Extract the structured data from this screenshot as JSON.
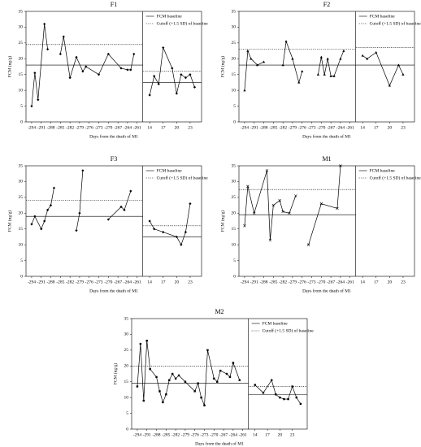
{
  "chart_data": [
    {
      "type": "line",
      "title": "F1",
      "ylabel": "FCM (ng/g)",
      "xlabel": "Days from the death of M1",
      "marker": "diamond",
      "color": "#000000",
      "ylim": [
        0,
        35
      ],
      "yticks": [
        0,
        5,
        10,
        15,
        20,
        25,
        30,
        35
      ],
      "legend": [
        "FCM baseline",
        "Cutoff (+1.5 SD) of baseline"
      ],
      "panels": [
        {
          "xlim": [
            -295,
            -260
          ],
          "xticks": [
            -294,
            -291,
            -288,
            -285,
            -282,
            -279,
            -276,
            -273,
            -270,
            -267,
            -264,
            -261
          ],
          "x": [
            -294,
            -293,
            -292,
            -290,
            -289,
            -288,
            -285,
            -284,
            -282,
            -280,
            -278,
            -277,
            -273,
            -270,
            -266,
            -264,
            -263,
            -262
          ],
          "values": [
            5,
            15.5,
            7,
            31,
            23,
            null,
            21.5,
            27,
            14,
            20.5,
            16,
            17.5,
            15,
            21.5,
            17,
            16.5,
            16.5,
            21.5
          ],
          "baseline": 18,
          "cutoff": 24.5
        },
        {
          "xlim": [
            13,
            25
          ],
          "xticks": [
            14,
            17,
            20,
            23
          ],
          "x": [
            14,
            15,
            16,
            17,
            19,
            20,
            21,
            22,
            23,
            24
          ],
          "values": [
            8.5,
            14.5,
            12,
            23.5,
            17,
            9,
            15,
            14,
            15,
            11
          ],
          "baseline": 12.5,
          "cutoff": 16
        }
      ]
    },
    {
      "type": "line",
      "title": "F2",
      "ylabel": "FCM (ng/g)",
      "xlabel": "Days from the death of M1",
      "marker": "triangle",
      "color": "#000000",
      "ylim": [
        0,
        35
      ],
      "yticks": [
        0,
        5,
        10,
        15,
        20,
        25,
        30,
        35
      ],
      "legend": [
        "FCM baseline",
        "Cutoff (+1.5 SD) of baseline"
      ],
      "panels": [
        {
          "xlim": [
            -295,
            -260
          ],
          "xticks": [
            -294,
            -291,
            -288,
            -285,
            -282,
            -279,
            -276,
            -273,
            -270,
            -267,
            -264,
            -261
          ],
          "x": [
            -294,
            -293,
            -292,
            -290,
            -288,
            -285,
            -282,
            -281,
            -279,
            -277,
            -276,
            -273,
            -271,
            -270,
            -269,
            -268,
            -267,
            -266,
            -264,
            -263
          ],
          "values": [
            10,
            22.5,
            20,
            18,
            19,
            null,
            18,
            25.5,
            20,
            12.5,
            16,
            null,
            15,
            20.5,
            15,
            20,
            14.5,
            14.5,
            20,
            22.5
          ],
          "baseline": 18,
          "cutoff": 23
        },
        {
          "xlim": [
            13,
            25
          ],
          "xticks": [
            14,
            17,
            20,
            23
          ],
          "x": [
            14,
            15,
            17,
            20,
            22,
            23
          ],
          "values": [
            21,
            20,
            22,
            11.5,
            18,
            15
          ],
          "baseline": 18,
          "cutoff": 23.5
        }
      ]
    },
    {
      "type": "line",
      "title": "F3",
      "ylabel": "FCM (ng/g)",
      "xlabel": "Days from the death of M1",
      "marker": "diamond",
      "color": "#000000",
      "ylim": [
        0,
        35
      ],
      "yticks": [
        0,
        5,
        10,
        15,
        20,
        25,
        30,
        35
      ],
      "legend": [
        "FCM baseline",
        "Cutoff (+1.5 SD) of baseline"
      ],
      "panels": [
        {
          "xlim": [
            -295,
            -260
          ],
          "xticks": [
            -294,
            -291,
            -288,
            -285,
            -282,
            -279,
            -276,
            -273,
            -270,
            -267,
            -264,
            -261
          ],
          "x": [
            -294,
            -293,
            -291,
            -290,
            -289,
            -288,
            -287,
            -284,
            -280,
            -279,
            -278,
            -274,
            -270,
            -266,
            -265,
            -263
          ],
          "values": [
            16.5,
            19,
            15,
            17.5,
            21,
            22.5,
            28,
            null,
            14.5,
            20,
            33.5,
            null,
            18,
            22,
            21,
            27
          ],
          "baseline": 19,
          "cutoff": 24
        },
        {
          "xlim": [
            13,
            25
          ],
          "xticks": [
            14,
            17,
            20,
            23
          ],
          "x": [
            14,
            15,
            17,
            20,
            21,
            22,
            23
          ],
          "values": [
            17.5,
            15,
            14,
            12.5,
            10,
            14,
            23
          ],
          "baseline": 12.5,
          "cutoff": 16
        }
      ]
    },
    {
      "type": "line",
      "title": "M1",
      "ylabel": "FCM (ng/g)",
      "xlabel": "Days from the death of M1",
      "marker": "cross",
      "color": "#000000",
      "ylim": [
        0,
        35
      ],
      "yticks": [
        0,
        5,
        10,
        15,
        20,
        25,
        30,
        35
      ],
      "legend": [
        "FCM baseline",
        "Cutoff (+1.5 SD) of baseline"
      ],
      "panels": [
        {
          "xlim": [
            -295,
            -260
          ],
          "xticks": [
            -294,
            -291,
            -288,
            -285,
            -282,
            -279,
            -276,
            -273,
            -270,
            -267,
            -264,
            -261
          ],
          "x": [
            -294,
            -293,
            -291,
            -287,
            -286,
            -285,
            -283,
            -282,
            -280,
            -278,
            -276,
            -274,
            -270,
            -265,
            -264
          ],
          "values": [
            16,
            28.5,
            20,
            33.5,
            11.5,
            22.5,
            24,
            20.5,
            20,
            25.5,
            null,
            10,
            23,
            21.5,
            35
          ],
          "baseline": 19.5,
          "cutoff": 27.5
        },
        {
          "xlim": [
            13,
            25
          ],
          "xticks": [
            14,
            17,
            20,
            23
          ],
          "x": [],
          "values": []
        }
      ]
    },
    {
      "type": "line",
      "title": "M2",
      "ylabel": "FCM (ng/g)",
      "xlabel": "Days from the death of M1",
      "marker": "square",
      "color": "#000000",
      "ylim": [
        0,
        35
      ],
      "yticks": [
        0,
        5,
        10,
        15,
        20,
        25,
        30,
        35
      ],
      "legend": [
        "FCM baseline",
        "Cutoff (+1.5 SD) of baseline"
      ],
      "panels": [
        {
          "xlim": [
            -295,
            -260
          ],
          "xticks": [
            -294,
            -291,
            -288,
            -285,
            -282,
            -279,
            -276,
            -273,
            -270,
            -267,
            -264,
            -261
          ],
          "x": [
            -294,
            -293,
            -292,
            -291,
            -290,
            -288,
            -287,
            -286,
            -285,
            -284,
            -283,
            -282,
            -281,
            -279,
            -276,
            -275,
            -274,
            -273,
            -272,
            -270,
            -269,
            -268,
            -266,
            -265,
            -264,
            -262
          ],
          "values": [
            13.5,
            27,
            9,
            28,
            19,
            16.5,
            12,
            8.5,
            11,
            15.5,
            17.5,
            16,
            17,
            15,
            12,
            14.5,
            10,
            7.5,
            25,
            16,
            15,
            18.5,
            17.5,
            16.5,
            21,
            15.5
          ],
          "baseline": 14.5,
          "cutoff": 20
        },
        {
          "xlim": [
            13,
            26
          ],
          "xticks": [
            14,
            17,
            20,
            23
          ],
          "x": [
            14,
            16,
            18,
            19,
            20,
            21,
            22,
            23,
            24,
            25
          ],
          "values": [
            14,
            11.5,
            15.5,
            11,
            10,
            9.5,
            9.5,
            13.5,
            10,
            8
          ],
          "baseline": 11,
          "cutoff": 13.5
        }
      ]
    }
  ]
}
